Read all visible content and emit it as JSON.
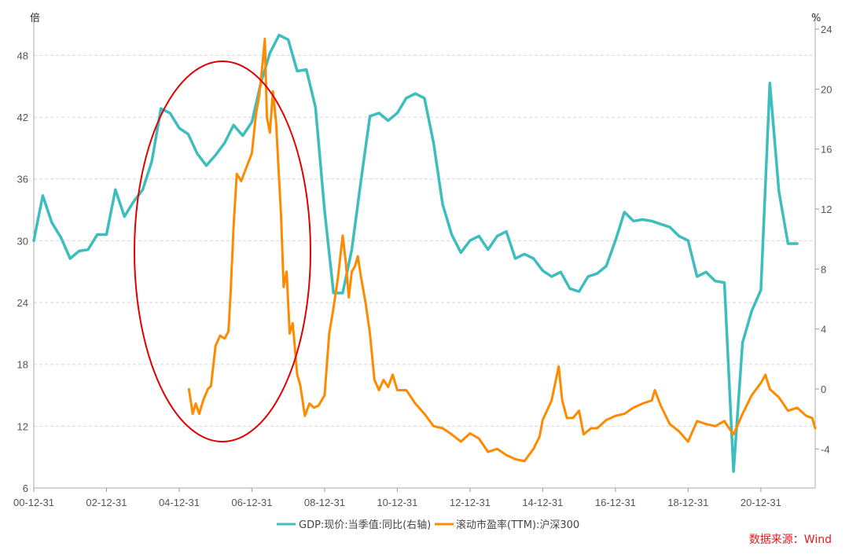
{
  "chart_data": {
    "type": "line",
    "left_axis_unit": "倍",
    "right_axis_unit": "%",
    "left_ticks": [
      "6",
      "12",
      "18",
      "24",
      "30",
      "36",
      "42",
      "48"
    ],
    "right_ticks": [
      "-4",
      "0",
      "4",
      "8",
      "12",
      "16",
      "20",
      "24"
    ],
    "ylim_left": [
      6,
      52
    ],
    "ylim_right": [
      -6.6,
      25
    ],
    "xlim": [
      "2000-12-31",
      "2022-06-30"
    ],
    "x_ticks": [
      "00-12-31",
      "02-12-31",
      "04-12-31",
      "06-12-31",
      "08-12-31",
      "10-12-31",
      "12-12-31",
      "14-12-31",
      "16-12-31",
      "18-12-31",
      "20-12-31"
    ],
    "legend_position": "bottom-center",
    "grid": "horizontal dashed",
    "source_text": "数据来源：Wind",
    "annotation": "red ellipse around 2004-2007",
    "series": [
      {
        "name": "GDP:现价:当季值:同比(右轴)",
        "axis": "right",
        "color": "#3dbdbd",
        "points": [
          [
            "2000-12-31",
            9.9
          ],
          [
            "2001-03-31",
            12.9
          ],
          [
            "2001-06-30",
            11.1
          ],
          [
            "2001-09-30",
            10.1
          ],
          [
            "2001-12-31",
            8.7
          ],
          [
            "2002-03-31",
            9.2
          ],
          [
            "2002-06-30",
            9.3
          ],
          [
            "2002-09-30",
            10.3
          ],
          [
            "2002-12-31",
            10.3
          ],
          [
            "2003-03-31",
            13.3
          ],
          [
            "2003-06-30",
            11.5
          ],
          [
            "2003-09-30",
            12.5
          ],
          [
            "2003-12-31",
            13.3
          ],
          [
            "2004-03-31",
            15.2
          ],
          [
            "2004-06-30",
            18.7
          ],
          [
            "2004-09-30",
            18.4
          ],
          [
            "2004-12-31",
            17.4
          ],
          [
            "2005-03-31",
            17.0
          ],
          [
            "2005-06-30",
            15.7
          ],
          [
            "2005-09-30",
            14.9
          ],
          [
            "2005-12-31",
            15.6
          ],
          [
            "2006-03-31",
            16.4
          ],
          [
            "2006-06-30",
            17.6
          ],
          [
            "2006-09-30",
            16.9
          ],
          [
            "2006-12-31",
            17.8
          ],
          [
            "2007-03-31",
            20.4
          ],
          [
            "2007-06-30",
            22.4
          ],
          [
            "2007-09-30",
            23.6
          ],
          [
            "2007-12-31",
            23.3
          ],
          [
            "2008-03-31",
            21.2
          ],
          [
            "2008-06-30",
            21.3
          ],
          [
            "2008-09-30",
            18.8
          ],
          [
            "2008-12-31",
            11.9
          ],
          [
            "2009-03-31",
            6.4
          ],
          [
            "2009-06-30",
            6.4
          ],
          [
            "2009-09-30",
            9.3
          ],
          [
            "2009-12-31",
            13.9
          ],
          [
            "2010-03-31",
            18.2
          ],
          [
            "2010-06-30",
            18.4
          ],
          [
            "2010-09-30",
            17.9
          ],
          [
            "2010-12-31",
            18.4
          ],
          [
            "2011-03-31",
            19.4
          ],
          [
            "2011-06-30",
            19.7
          ],
          [
            "2011-09-30",
            19.4
          ],
          [
            "2011-12-31",
            16.4
          ],
          [
            "2012-03-31",
            12.3
          ],
          [
            "2012-06-30",
            10.3
          ],
          [
            "2012-09-30",
            9.1
          ],
          [
            "2012-12-31",
            9.9
          ],
          [
            "2013-03-31",
            10.2
          ],
          [
            "2013-06-30",
            9.3
          ],
          [
            "2013-09-30",
            10.2
          ],
          [
            "2013-12-31",
            10.5
          ],
          [
            "2014-03-31",
            8.7
          ],
          [
            "2014-06-30",
            9.0
          ],
          [
            "2014-09-30",
            8.7
          ],
          [
            "2014-12-31",
            7.9
          ],
          [
            "2015-03-31",
            7.5
          ],
          [
            "2015-06-30",
            7.8
          ],
          [
            "2015-09-30",
            6.7
          ],
          [
            "2015-12-31",
            6.5
          ],
          [
            "2016-03-31",
            7.5
          ],
          [
            "2016-06-30",
            7.7
          ],
          [
            "2016-09-30",
            8.2
          ],
          [
            "2016-12-31",
            9.9
          ],
          [
            "2017-03-31",
            11.8
          ],
          [
            "2017-06-30",
            11.2
          ],
          [
            "2017-09-30",
            11.3
          ],
          [
            "2017-12-31",
            11.2
          ],
          [
            "2018-03-31",
            11.0
          ],
          [
            "2018-06-30",
            10.8
          ],
          [
            "2018-09-30",
            10.2
          ],
          [
            "2018-12-31",
            9.9
          ],
          [
            "2019-03-31",
            7.5
          ],
          [
            "2019-06-30",
            7.8
          ],
          [
            "2019-09-30",
            7.2
          ],
          [
            "2019-12-31",
            7.1
          ],
          [
            "2020-03-31",
            -5.5
          ],
          [
            "2020-06-30",
            3.1
          ],
          [
            "2020-09-30",
            5.2
          ],
          [
            "2020-12-31",
            6.6
          ],
          [
            "2021-03-31",
            20.4
          ],
          [
            "2021-06-30",
            13.2
          ],
          [
            "2021-09-30",
            9.7
          ],
          [
            "2021-12-31",
            9.7
          ]
        ]
      },
      {
        "name": "滚动市盈率(TTM):沪深300",
        "axis": "left",
        "color": "#ff8a00",
        "points": [
          [
            "2005-04-08",
            15.6
          ],
          [
            "2005-05-15",
            13.2
          ],
          [
            "2005-06-15",
            14.2
          ],
          [
            "2005-07-20",
            13.2
          ],
          [
            "2005-09-01",
            14.6
          ],
          [
            "2005-10-15",
            15.6
          ],
          [
            "2005-11-15",
            15.9
          ],
          [
            "2005-12-31",
            19.8
          ],
          [
            "2006-02-15",
            20.8
          ],
          [
            "2006-04-01",
            20.5
          ],
          [
            "2006-05-10",
            21.2
          ],
          [
            "2006-06-01",
            25.0
          ],
          [
            "2006-07-01",
            31.5
          ],
          [
            "2006-08-01",
            36.5
          ],
          [
            "2006-09-15",
            35.8
          ],
          [
            "2006-11-01",
            37.0
          ],
          [
            "2006-12-31",
            38.5
          ],
          [
            "2007-02-10",
            42.3
          ],
          [
            "2007-03-15",
            44.1
          ],
          [
            "2007-04-15",
            47.0
          ],
          [
            "2007-05-10",
            49.6
          ],
          [
            "2007-05-31",
            42.0
          ],
          [
            "2007-06-30",
            40.5
          ],
          [
            "2007-07-31",
            44.5
          ],
          [
            "2007-08-31",
            41.5
          ],
          [
            "2007-09-30",
            36.0
          ],
          [
            "2007-10-20",
            32.5
          ],
          [
            "2007-11-15",
            25.5
          ],
          [
            "2007-12-15",
            27.0
          ],
          [
            "2008-01-15",
            21.0
          ],
          [
            "2008-02-15",
            22.0
          ],
          [
            "2008-03-31",
            17.0
          ],
          [
            "2008-04-30",
            16.0
          ],
          [
            "2008-06-15",
            13.0
          ],
          [
            "2008-07-31",
            14.2
          ],
          [
            "2008-09-15",
            13.8
          ],
          [
            "2008-10-31",
            14.0
          ],
          [
            "2008-12-31",
            15.0
          ],
          [
            "2009-02-15",
            21.0
          ],
          [
            "2009-03-31",
            23.5
          ],
          [
            "2009-05-15",
            26.5
          ],
          [
            "2009-06-30",
            30.5
          ],
          [
            "2009-07-31",
            28.0
          ],
          [
            "2009-08-31",
            24.5
          ],
          [
            "2009-09-30",
            27.0
          ],
          [
            "2009-10-31",
            27.5
          ],
          [
            "2009-11-30",
            28.5
          ],
          [
            "2009-12-31",
            26.5
          ],
          [
            "2010-02-15",
            24.0
          ],
          [
            "2010-03-31",
            21.0
          ],
          [
            "2010-05-15",
            16.5
          ],
          [
            "2010-06-30",
            15.5
          ],
          [
            "2010-08-15",
            16.5
          ],
          [
            "2010-09-30",
            15.8
          ],
          [
            "2010-11-15",
            17.0
          ],
          [
            "2010-12-31",
            15.5
          ],
          [
            "2011-03-31",
            15.5
          ],
          [
            "2011-06-30",
            14.2
          ],
          [
            "2011-09-30",
            13.2
          ],
          [
            "2011-12-31",
            12.0
          ],
          [
            "2012-03-31",
            11.8
          ],
          [
            "2012-06-30",
            11.2
          ],
          [
            "2012-09-30",
            10.5
          ],
          [
            "2012-12-31",
            11.3
          ],
          [
            "2013-03-31",
            10.8
          ],
          [
            "2013-06-30",
            9.5
          ],
          [
            "2013-09-30",
            9.8
          ],
          [
            "2013-12-31",
            9.2
          ],
          [
            "2014-03-31",
            8.8
          ],
          [
            "2014-06-30",
            8.6
          ],
          [
            "2014-09-30",
            9.8
          ],
          [
            "2014-11-30",
            11.0
          ],
          [
            "2014-12-31",
            12.6
          ],
          [
            "2015-03-31",
            14.5
          ],
          [
            "2015-06-10",
            17.8
          ],
          [
            "2015-07-15",
            14.5
          ],
          [
            "2015-08-31",
            12.8
          ],
          [
            "2015-10-31",
            12.8
          ],
          [
            "2015-12-31",
            13.5
          ],
          [
            "2016-02-15",
            11.2
          ],
          [
            "2016-04-30",
            11.8
          ],
          [
            "2016-06-30",
            11.8
          ],
          [
            "2016-09-30",
            12.6
          ],
          [
            "2016-12-31",
            13.0
          ],
          [
            "2017-03-31",
            13.2
          ],
          [
            "2017-06-30",
            13.8
          ],
          [
            "2017-09-30",
            14.2
          ],
          [
            "2017-12-31",
            14.5
          ],
          [
            "2018-01-31",
            15.5
          ],
          [
            "2018-03-31",
            14.0
          ],
          [
            "2018-06-30",
            12.2
          ],
          [
            "2018-09-30",
            11.5
          ],
          [
            "2018-12-31",
            10.5
          ],
          [
            "2019-03-31",
            12.5
          ],
          [
            "2019-06-30",
            12.2
          ],
          [
            "2019-09-30",
            12.0
          ],
          [
            "2019-12-31",
            12.5
          ],
          [
            "2020-02-01",
            12.0
          ],
          [
            "2020-03-31",
            11.2
          ],
          [
            "2020-06-30",
            13.2
          ],
          [
            "2020-09-30",
            15.0
          ],
          [
            "2020-12-31",
            16.2
          ],
          [
            "2021-02-15",
            17.0
          ],
          [
            "2021-03-31",
            15.6
          ],
          [
            "2021-06-30",
            14.8
          ],
          [
            "2021-09-30",
            13.5
          ],
          [
            "2021-12-31",
            13.8
          ],
          [
            "2022-03-31",
            13.0
          ],
          [
            "2022-05-31",
            12.8
          ],
          [
            "2022-06-30",
            11.8
          ]
        ]
      }
    ]
  }
}
